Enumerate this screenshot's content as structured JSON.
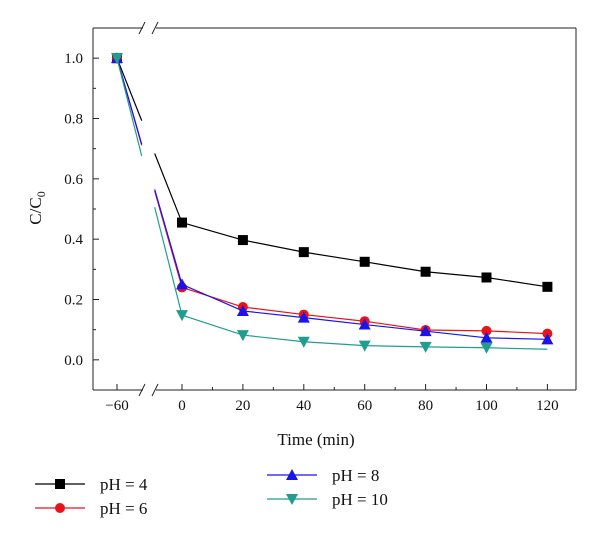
{
  "chart_data": {
    "type": "line",
    "xlabel": "Time (min)",
    "ylabel": {
      "main": "C/C",
      "sub": "0"
    },
    "x_ticks": [
      "-60",
      "0",
      "20",
      "40",
      "60",
      "80",
      "100",
      "120"
    ],
    "y_ticks": [
      "0.0",
      "0.2",
      "0.4",
      "0.6",
      "0.8",
      "1.0"
    ],
    "xlim": [
      -66,
      124
    ],
    "ylim": [
      -0.1,
      1.1
    ],
    "axis_break": "between -60 and 0",
    "grid": false,
    "legend_position": "bottom",
    "series": [
      {
        "name": "pH = 4",
        "color": "#000000",
        "marker": "square",
        "points": [
          [
            -60,
            1.0
          ],
          [
            0,
            0.455
          ],
          [
            20,
            0.397
          ],
          [
            40,
            0.357
          ],
          [
            60,
            0.325
          ],
          [
            80,
            0.292
          ],
          [
            100,
            0.273
          ],
          [
            120,
            0.242
          ]
        ]
      },
      {
        "name": "pH = 6",
        "color": "#e8141a",
        "marker": "circle",
        "points": [
          [
            -60,
            1.0
          ],
          [
            0,
            0.24
          ],
          [
            20,
            0.175
          ],
          [
            40,
            0.15
          ],
          [
            60,
            0.128
          ],
          [
            80,
            0.099
          ],
          [
            100,
            0.096
          ],
          [
            120,
            0.087
          ]
        ]
      },
      {
        "name": "pH = 8",
        "color": "#1a14e8",
        "marker": "triangle-up",
        "points": [
          [
            -60,
            1.0
          ],
          [
            0,
            0.25
          ],
          [
            20,
            0.162
          ],
          [
            40,
            0.14
          ],
          [
            60,
            0.117
          ],
          [
            80,
            0.095
          ],
          [
            100,
            0.073
          ],
          [
            120,
            0.068
          ]
        ]
      },
      {
        "name": "pH = 10",
        "color": "#1f9e8f",
        "marker": "triangle-down",
        "points": [
          [
            -60,
            1.0
          ],
          [
            0,
            0.148
          ],
          [
            20,
            0.082
          ],
          [
            40,
            0.06
          ],
          [
            60,
            0.047
          ],
          [
            80,
            0.043
          ],
          [
            100,
            0.04
          ],
          [
            120,
            0.035
          ]
        ]
      }
    ]
  }
}
